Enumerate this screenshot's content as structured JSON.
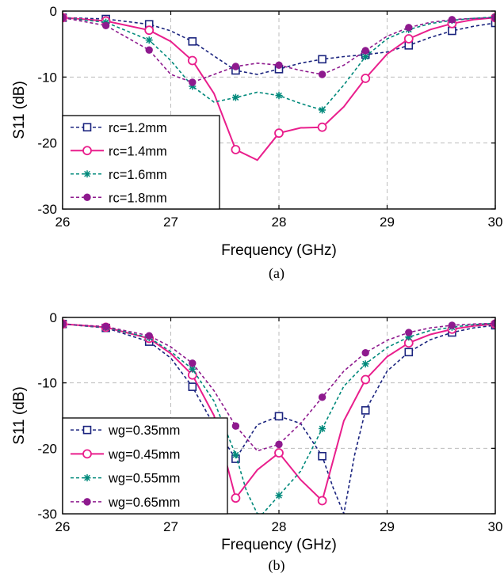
{
  "chart_data": [
    {
      "type": "line",
      "caption": "(a)",
      "xlabel": "Frequency (GHz)",
      "ylabel": "S11 (dB)",
      "xlim": [
        26,
        30
      ],
      "ylim": [
        -30,
        0
      ],
      "xticks": [
        "26",
        "27",
        "28",
        "29",
        "30"
      ],
      "yticks": [
        "0",
        "-10",
        "-20",
        "-30"
      ],
      "grid": true,
      "legend_position": "lower-left",
      "series": [
        {
          "name": "rc=1.2mm",
          "color": "#1a237e",
          "dash": "dash",
          "marker": "square",
          "x": [
            26.0,
            26.4,
            26.8,
            27.0,
            27.2,
            27.4,
            27.6,
            27.8,
            28.0,
            28.2,
            28.4,
            28.6,
            28.8,
            29.0,
            29.2,
            29.4,
            29.6,
            29.8,
            30.0
          ],
          "y": [
            -1.0,
            -1.2,
            -2.0,
            -3.0,
            -4.6,
            -6.8,
            -9.0,
            -9.6,
            -8.8,
            -7.9,
            -7.3,
            -6.9,
            -6.6,
            -6.2,
            -5.2,
            -4.0,
            -3.0,
            -2.3,
            -1.8
          ],
          "marker_x": [
            26.0,
            26.4,
            26.8,
            27.2,
            27.6,
            28.0,
            28.4,
            28.8,
            29.2,
            29.6,
            30.0
          ]
        },
        {
          "name": "rc=1.4mm",
          "color": "#e91e8c",
          "dash": "solid",
          "marker": "circle",
          "x": [
            26.0,
            26.4,
            26.8,
            27.0,
            27.2,
            27.4,
            27.6,
            27.8,
            28.0,
            28.2,
            28.4,
            28.6,
            28.8,
            29.0,
            29.2,
            29.4,
            29.6,
            29.8,
            30.0
          ],
          "y": [
            -1.0,
            -1.5,
            -2.9,
            -4.6,
            -7.5,
            -12.5,
            -21.0,
            -22.6,
            -18.5,
            -17.7,
            -17.6,
            -14.5,
            -10.2,
            -6.5,
            -4.2,
            -2.8,
            -1.9,
            -1.3,
            -1.0
          ],
          "marker_x": [
            26.0,
            26.4,
            26.8,
            27.2,
            27.6,
            28.0,
            28.4,
            28.8,
            29.2,
            29.6,
            30.0
          ]
        },
        {
          "name": "rc=1.6mm",
          "color": "#00897b",
          "dash": "dash",
          "marker": "asterisk",
          "x": [
            26.0,
            26.4,
            26.8,
            27.0,
            27.2,
            27.4,
            27.6,
            27.8,
            28.0,
            28.2,
            28.4,
            28.6,
            28.8,
            29.0,
            29.2,
            29.4,
            29.6,
            29.8,
            30.0
          ],
          "y": [
            -1.0,
            -1.7,
            -4.4,
            -7.5,
            -11.4,
            -13.8,
            -13.1,
            -12.3,
            -12.8,
            -14.0,
            -15.0,
            -11.2,
            -6.9,
            -4.2,
            -2.8,
            -1.9,
            -1.4,
            -1.1,
            -0.9
          ],
          "marker_x": [
            26.0,
            26.4,
            26.8,
            27.2,
            27.6,
            28.0,
            28.4,
            28.8,
            29.2,
            29.6,
            30.0
          ]
        },
        {
          "name": "rc=1.8mm",
          "color": "#8e1a8e",
          "dash": "dash",
          "marker": "dot",
          "x": [
            26.0,
            26.4,
            26.8,
            27.0,
            27.2,
            27.4,
            27.6,
            27.8,
            28.0,
            28.2,
            28.4,
            28.6,
            28.8,
            29.0,
            29.2,
            29.4,
            29.6,
            29.8,
            30.0
          ],
          "y": [
            -1.0,
            -2.2,
            -5.9,
            -9.6,
            -10.8,
            -9.6,
            -8.4,
            -7.9,
            -8.2,
            -9.0,
            -9.6,
            -8.2,
            -6.0,
            -3.8,
            -2.5,
            -1.7,
            -1.3,
            -1.1,
            -1.0
          ],
          "marker_x": [
            26.0,
            26.4,
            26.8,
            27.2,
            27.6,
            28.0,
            28.4,
            28.8,
            29.2,
            29.6,
            30.0
          ]
        }
      ]
    },
    {
      "type": "line",
      "caption": "(b)",
      "xlabel": "Frequency (GHz)",
      "ylabel": "S11 (dB)",
      "xlim": [
        26,
        30
      ],
      "ylim": [
        -30,
        0
      ],
      "xticks": [
        "26",
        "27",
        "28",
        "29",
        "30"
      ],
      "yticks": [
        "0",
        "-10",
        "-20",
        "-30"
      ],
      "grid": true,
      "legend_position": "lower-left",
      "series": [
        {
          "name": "wg=0.35mm",
          "color": "#1a237e",
          "dash": "dash",
          "marker": "square",
          "x": [
            26.0,
            26.4,
            26.8,
            27.0,
            27.2,
            27.4,
            27.6,
            27.8,
            28.0,
            28.2,
            28.4,
            28.5,
            28.6,
            28.7,
            28.8,
            29.0,
            29.2,
            29.4,
            29.6,
            29.8,
            30.0
          ],
          "y": [
            -1.0,
            -1.6,
            -3.7,
            -6.2,
            -10.6,
            -16.5,
            -21.6,
            -16.4,
            -15.1,
            -16.2,
            -21.2,
            -26.0,
            -30.0,
            -21.0,
            -14.2,
            -8.2,
            -5.3,
            -3.4,
            -2.3,
            -1.6,
            -1.2
          ],
          "marker_x": [
            26.0,
            26.4,
            26.8,
            27.2,
            27.6,
            28.0,
            28.4,
            28.8,
            29.2,
            29.6,
            30.0
          ]
        },
        {
          "name": "wg=0.45mm",
          "color": "#e91e8c",
          "dash": "solid",
          "marker": "circle",
          "x": [
            26.0,
            26.4,
            26.8,
            27.0,
            27.2,
            27.4,
            27.6,
            27.8,
            28.0,
            28.2,
            28.4,
            28.6,
            28.8,
            29.0,
            29.2,
            29.4,
            29.6,
            29.8,
            30.0
          ],
          "y": [
            -1.0,
            -1.5,
            -3.2,
            -5.5,
            -8.8,
            -15.0,
            -27.6,
            -23.3,
            -20.7,
            -24.8,
            -28.0,
            -15.8,
            -9.5,
            -6.0,
            -3.9,
            -2.6,
            -1.8,
            -1.3,
            -1.0
          ],
          "marker_x": [
            26.0,
            26.4,
            26.8,
            27.2,
            27.6,
            28.0,
            28.4,
            28.8,
            29.2,
            29.6,
            30.0
          ]
        },
        {
          "name": "wg=0.55mm",
          "color": "#00897b",
          "dash": "dash",
          "marker": "asterisk",
          "x": [
            26.0,
            26.4,
            26.8,
            27.0,
            27.2,
            27.4,
            27.6,
            27.7,
            27.8,
            27.85,
            28.0,
            28.2,
            28.4,
            28.6,
            28.8,
            29.0,
            29.2,
            29.4,
            29.6,
            29.8,
            30.0
          ],
          "y": [
            -1.0,
            -1.5,
            -3.1,
            -5.2,
            -7.9,
            -12.8,
            -21.0,
            -26.5,
            -30.0,
            -30.0,
            -27.2,
            -23.5,
            -17.0,
            -10.5,
            -7.1,
            -4.6,
            -3.0,
            -2.0,
            -1.5,
            -1.1,
            -0.9
          ],
          "marker_x": [
            26.0,
            26.4,
            26.8,
            27.2,
            27.6,
            28.0,
            28.4,
            28.8,
            29.2,
            29.6,
            30.0
          ]
        },
        {
          "name": "wg=0.65mm",
          "color": "#8e1a8e",
          "dash": "dash",
          "marker": "dot",
          "x": [
            26.0,
            26.4,
            26.8,
            27.0,
            27.2,
            27.4,
            27.6,
            27.8,
            28.0,
            28.2,
            28.4,
            28.6,
            28.8,
            29.0,
            29.2,
            29.4,
            29.6,
            29.8,
            30.0
          ],
          "y": [
            -1.0,
            -1.4,
            -2.8,
            -4.5,
            -7.0,
            -11.2,
            -16.6,
            -20.4,
            -19.4,
            -16.2,
            -12.2,
            -8.2,
            -5.4,
            -3.5,
            -2.3,
            -1.6,
            -1.2,
            -1.0,
            -0.9
          ],
          "marker_x": [
            26.0,
            26.4,
            26.8,
            27.2,
            27.6,
            28.0,
            28.4,
            28.8,
            29.2,
            29.6,
            30.0
          ]
        }
      ]
    }
  ]
}
